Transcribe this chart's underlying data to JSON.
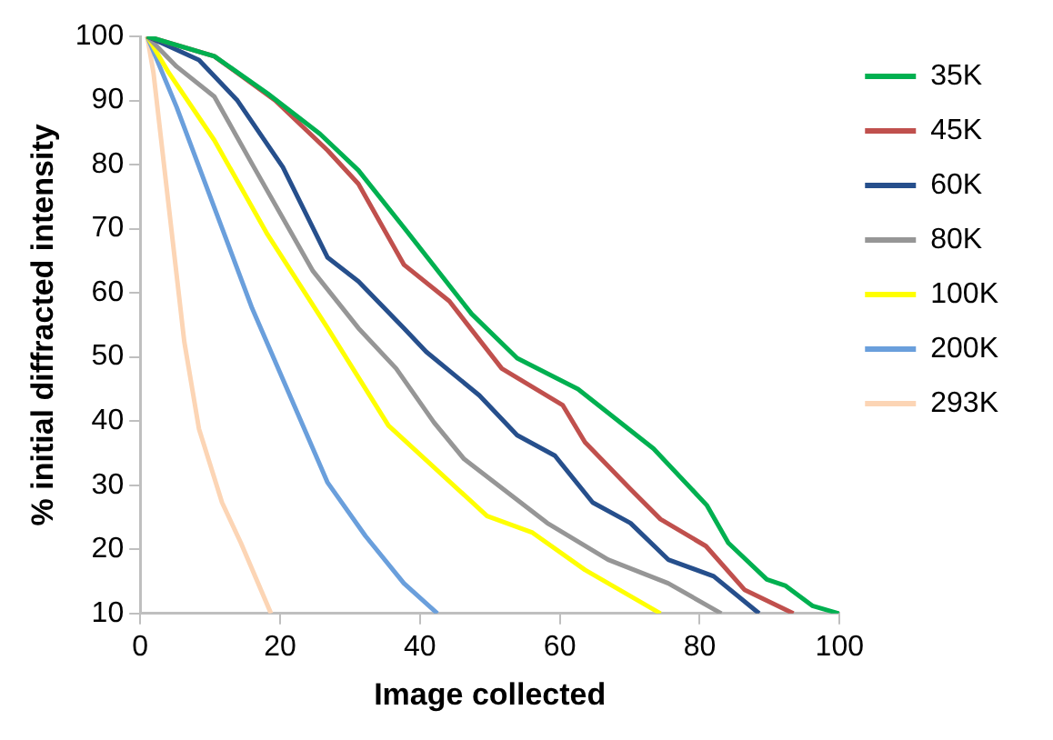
{
  "chart_data": {
    "type": "line",
    "xlabel": "Image collected",
    "ylabel": "% initial diffracted intensity",
    "xlim": [
      0,
      100
    ],
    "xticks": [
      0,
      20,
      40,
      60,
      80,
      100
    ],
    "ylim": [
      10,
      100
    ],
    "yticks": [
      10,
      20,
      30,
      40,
      50,
      60,
      70,
      80,
      90,
      100
    ],
    "grid": false,
    "legend": "right",
    "marker": "none",
    "line_style": "solid",
    "series": [
      {
        "name": "35K",
        "color": "#00b050",
        "x": [
          1,
          10.6,
          18.2,
          25.7,
          31.2,
          37.7,
          47.4,
          53.9,
          62.6,
          73.4,
          81,
          84.1,
          89.6,
          92.3,
          96.1,
          99.9
        ],
        "values": [
          100,
          96.9,
          91.1,
          84.8,
          79.1,
          70.2,
          56.7,
          49.8,
          45,
          35.7,
          26.9,
          21,
          15.3,
          14.3,
          11.2,
          10
        ]
      },
      {
        "name": "45K",
        "color": "#c0504d",
        "x": [
          1,
          10.6,
          19.3,
          26.8,
          31.2,
          37.7,
          44.2,
          51.7,
          60.4,
          63.6,
          70.1,
          74.4,
          80.9,
          86.4,
          93.4
        ],
        "values": [
          100,
          96.9,
          90,
          82.2,
          77,
          64.4,
          58.7,
          48.2,
          42.5,
          36.7,
          29.4,
          24.7,
          20.5,
          13.7,
          10
        ]
      },
      {
        "name": "60K",
        "color": "#264f8c",
        "x": [
          1,
          8.4,
          13.9,
          20.4,
          26.8,
          31.2,
          37.7,
          40.9,
          48.5,
          53.9,
          59.3,
          64.7,
          70.1,
          75.5,
          82,
          88.5
        ],
        "values": [
          100,
          96.3,
          90,
          79.6,
          65.5,
          61.8,
          54.5,
          50.8,
          44,
          37.8,
          34.6,
          27.3,
          24.1,
          18.4,
          15.8,
          10
        ]
      },
      {
        "name": "80K",
        "color": "#969696",
        "x": [
          1,
          5.2,
          10.6,
          16,
          24.7,
          31.2,
          36.6,
          42,
          46.3,
          58.2,
          66.9,
          75.5,
          83.1
        ],
        "values": [
          100,
          95.3,
          90.6,
          80.1,
          63.4,
          54.5,
          48.2,
          39.8,
          34.1,
          24.1,
          18.4,
          14.7,
          10
        ]
      },
      {
        "name": "100K",
        "color": "#ffff00",
        "x": [
          1,
          4.1,
          10.6,
          18.2,
          26.8,
          35.5,
          49.6,
          56.1,
          63.6,
          74.4
        ],
        "values": [
          100,
          94.3,
          83.8,
          69.1,
          54.5,
          39.3,
          25.2,
          22.6,
          16.8,
          10
        ]
      },
      {
        "name": "200K",
        "color": "#6a9fdc",
        "x": [
          1,
          5.2,
          10.6,
          16,
          21.4,
          26.8,
          32.2,
          37.7,
          42.5
        ],
        "values": [
          100,
          89,
          73.3,
          57.6,
          44,
          30.4,
          22.1,
          14.7,
          10
        ]
      },
      {
        "name": "293K",
        "color": "#fcd5b5",
        "x": [
          1,
          1.9,
          4.1,
          6.3,
          8.4,
          11.7,
          14.4,
          18.7
        ],
        "values": [
          100,
          94.3,
          73.3,
          52.4,
          38.8,
          27.3,
          21,
          10
        ]
      }
    ]
  }
}
